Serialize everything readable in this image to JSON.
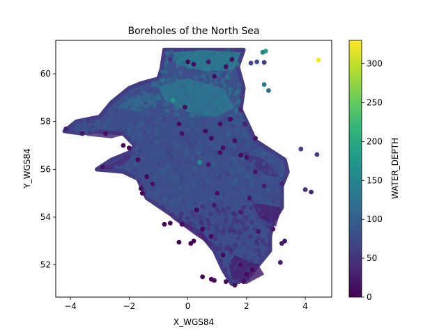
{
  "chart_data": {
    "type": "scatter",
    "title": "Boreholes of the North Sea",
    "xlabel": "X_WGS84",
    "ylabel": "Y_WGS84",
    "xlim": [
      -4.5,
      4.9
    ],
    "ylim": [
      50.65,
      61.4
    ],
    "xticks": [
      -4,
      -2,
      0,
      2,
      4
    ],
    "xtick_labels": [
      "−4",
      "−2",
      "0",
      "2",
      "4"
    ],
    "yticks": [
      52,
      54,
      56,
      58,
      60
    ],
    "ytick_labels": [
      "52",
      "54",
      "56",
      "58",
      "60"
    ],
    "color_variable": "WATER_DEPTH",
    "colorbar": {
      "label": "WATER_DEPTH",
      "range": [
        0,
        330
      ],
      "ticks": [
        0,
        50,
        100,
        150,
        200,
        250,
        300
      ],
      "tick_labels": [
        "0",
        "50",
        "100",
        "150",
        "200",
        "250",
        "300"
      ],
      "colormap": "viridis",
      "stops": [
        "#440154",
        "#482878",
        "#3e4989",
        "#31688e",
        "#26828e",
        "#1f9e89",
        "#35b779",
        "#6ece58",
        "#b5de2b",
        "#fde725"
      ]
    },
    "grid": false,
    "region_polygon": [
      [
        -4.2,
        57.6
      ],
      [
        -3.8,
        58.0
      ],
      [
        -3.0,
        58.2
      ],
      [
        -2.6,
        58.8
      ],
      [
        -2.0,
        59.4
      ],
      [
        -1.6,
        59.6
      ],
      [
        -1.0,
        59.8
      ],
      [
        -0.9,
        60.2
      ],
      [
        -0.8,
        61.0
      ],
      [
        1.0,
        61.0
      ],
      [
        1.9,
        61.0
      ],
      [
        1.7,
        60.3
      ],
      [
        1.9,
        59.4
      ],
      [
        1.8,
        58.5
      ],
      [
        2.0,
        58.0
      ],
      [
        2.3,
        57.2
      ],
      [
        2.8,
        56.8
      ],
      [
        3.3,
        56.4
      ],
      [
        3.4,
        55.9
      ],
      [
        3.2,
        55.3
      ],
      [
        3.2,
        54.4
      ],
      [
        2.9,
        53.8
      ],
      [
        2.8,
        53.2
      ],
      [
        2.8,
        52.6
      ],
      [
        2.4,
        52.0
      ],
      [
        2.0,
        51.4
      ],
      [
        1.5,
        51.2
      ],
      [
        1.2,
        51.8
      ],
      [
        0.9,
        52.6
      ],
      [
        0.5,
        53.2
      ],
      [
        -0.2,
        53.8
      ],
      [
        -0.8,
        54.3
      ],
      [
        -1.4,
        54.8
      ],
      [
        -1.7,
        55.6
      ],
      [
        -2.2,
        55.9
      ],
      [
        -3.1,
        56.0
      ],
      [
        -2.6,
        56.4
      ],
      [
        -2.0,
        56.7
      ],
      [
        -1.8,
        57.0
      ],
      [
        -2.2,
        57.5
      ],
      [
        -3.2,
        57.6
      ],
      [
        -3.6,
        57.5
      ]
    ],
    "shallow_patches": [
      {
        "polygon": [
          [
            -3.1,
            56.0
          ],
          [
            -2.5,
            56.3
          ],
          [
            -1.9,
            56.7
          ],
          [
            -1.6,
            56.9
          ],
          [
            -2.2,
            56.2
          ],
          [
            -2.6,
            56.0
          ]
        ],
        "water_depth": 40
      },
      {
        "polygon": [
          [
            -0.2,
            53.8
          ],
          [
            0.5,
            53.4
          ],
          [
            0.8,
            52.8
          ],
          [
            0.3,
            53.2
          ],
          [
            -0.6,
            54.0
          ]
        ],
        "water_depth": 35
      },
      {
        "polygon": [
          [
            1.6,
            52.4
          ],
          [
            2.4,
            52.0
          ],
          [
            2.6,
            51.6
          ],
          [
            2.0,
            51.2
          ],
          [
            1.5,
            51.4
          ],
          [
            1.4,
            52.0
          ]
        ],
        "water_depth": 30
      },
      {
        "polygon": [
          [
            -3.6,
            57.5
          ],
          [
            -2.6,
            57.6
          ],
          [
            -2.0,
            57.5
          ],
          [
            -2.6,
            57.3
          ],
          [
            -3.4,
            57.4
          ]
        ],
        "water_depth": 45
      },
      {
        "polygon": [
          [
            1.8,
            56.8
          ],
          [
            2.6,
            56.4
          ],
          [
            3.2,
            55.6
          ],
          [
            2.6,
            55.8
          ],
          [
            2.0,
            56.4
          ]
        ],
        "water_depth": 50
      },
      {
        "polygon": [
          [
            2.2,
            54.6
          ],
          [
            3.2,
            54.4
          ],
          [
            3.0,
            53.6
          ],
          [
            2.4,
            54.0
          ]
        ],
        "water_depth": 30
      }
    ],
    "deep_patches": [
      {
        "polygon": [
          [
            -1.0,
            59.5
          ],
          [
            0.0,
            59.8
          ],
          [
            1.2,
            59.4
          ],
          [
            1.6,
            58.6
          ],
          [
            1.0,
            58.2
          ],
          [
            0.0,
            58.4
          ],
          [
            -0.8,
            58.9
          ]
        ],
        "water_depth": 125
      },
      {
        "polygon": [
          [
            -0.5,
            60.9
          ],
          [
            0.5,
            61.0
          ],
          [
            1.8,
            60.9
          ],
          [
            1.6,
            60.2
          ],
          [
            0.6,
            60.1
          ],
          [
            -0.4,
            60.4
          ]
        ],
        "water_depth": 135
      },
      {
        "polygon": [
          [
            -2.4,
            58.6
          ],
          [
            -1.6,
            59.3
          ],
          [
            -0.9,
            59.0
          ],
          [
            -1.6,
            58.4
          ]
        ],
        "water_depth": 110
      }
    ],
    "points": [
      {
        "x": 4.45,
        "y": 60.58,
        "depth": 330
      },
      {
        "x": 2.65,
        "y": 60.95,
        "depth": 185
      },
      {
        "x": 2.55,
        "y": 60.9,
        "depth": 150
      },
      {
        "x": 2.35,
        "y": 60.5,
        "depth": 80
      },
      {
        "x": 2.15,
        "y": 60.45,
        "depth": 70
      },
      {
        "x": 2.6,
        "y": 60.48,
        "depth": 60
      },
      {
        "x": 2.6,
        "y": 59.55,
        "depth": 130
      },
      {
        "x": 2.75,
        "y": 59.3,
        "depth": 120
      },
      {
        "x": -0.5,
        "y": 58.9,
        "depth": 175
      },
      {
        "x": 0.4,
        "y": 56.3,
        "depth": 160
      },
      {
        "x": 3.85,
        "y": 56.85,
        "depth": 65
      },
      {
        "x": 4.4,
        "y": 56.62,
        "depth": 60
      },
      {
        "x": 4.0,
        "y": 55.15,
        "depth": 40
      },
      {
        "x": 4.2,
        "y": 55.05,
        "depth": 35
      },
      {
        "x": 3.2,
        "y": 55.4,
        "depth": 30
      },
      {
        "x": 2.3,
        "y": 55.9,
        "depth": 20
      },
      {
        "x": 1.1,
        "y": 56.7,
        "depth": 10
      },
      {
        "x": 2.0,
        "y": 56.5,
        "depth": 15
      },
      {
        "x": 0.7,
        "y": 56.2,
        "depth": 20
      },
      {
        "x": -0.3,
        "y": 57.9,
        "depth": 10
      },
      {
        "x": 1.1,
        "y": 57.9,
        "depth": 10
      },
      {
        "x": 1.6,
        "y": 57.2,
        "depth": 15
      },
      {
        "x": 0.8,
        "y": 57.3,
        "depth": 10
      },
      {
        "x": -0.1,
        "y": 58.6,
        "depth": 10
      },
      {
        "x": 0.2,
        "y": 60.4,
        "depth": 10
      },
      {
        "x": 0.7,
        "y": 60.5,
        "depth": 20
      },
      {
        "x": 1.3,
        "y": 60.3,
        "depth": 15
      },
      {
        "x": -0.6,
        "y": 60.6,
        "depth": 40
      },
      {
        "x": 0.3,
        "y": 54.3,
        "depth": 5
      },
      {
        "x": 0.5,
        "y": 53.5,
        "depth": 5
      },
      {
        "x": 0.8,
        "y": 53.2,
        "depth": 10
      },
      {
        "x": -0.3,
        "y": 52.95,
        "depth": 2
      },
      {
        "x": 0.1,
        "y": 52.9,
        "depth": 2
      },
      {
        "x": 0.2,
        "y": 53.0,
        "depth": 2
      },
      {
        "x": -0.6,
        "y": 53.75,
        "depth": 8
      },
      {
        "x": -0.8,
        "y": 53.7,
        "depth": 5
      },
      {
        "x": -0.2,
        "y": 53.7,
        "depth": 8
      },
      {
        "x": 0.5,
        "y": 51.5,
        "depth": 2
      },
      {
        "x": 0.8,
        "y": 51.4,
        "depth": 3
      },
      {
        "x": 0.9,
        "y": 51.35,
        "depth": 2
      },
      {
        "x": 1.3,
        "y": 51.3,
        "depth": 5
      },
      {
        "x": 1.6,
        "y": 51.15,
        "depth": 10
      },
      {
        "x": 1.9,
        "y": 51.3,
        "depth": 10
      },
      {
        "x": -1.7,
        "y": 56.4,
        "depth": 5
      },
      {
        "x": -1.4,
        "y": 55.7,
        "depth": 10
      },
      {
        "x": -1.6,
        "y": 55.2,
        "depth": 12
      },
      {
        "x": -1.55,
        "y": 55.0,
        "depth": 6
      },
      {
        "x": -2.8,
        "y": 57.5,
        "depth": 10
      },
      {
        "x": -3.6,
        "y": 57.5,
        "depth": 20
      },
      {
        "x": -4.15,
        "y": 57.7,
        "depth": 30
      },
      {
        "x": -2.2,
        "y": 57.0,
        "depth": 5
      },
      {
        "x": -2.0,
        "y": 56.9,
        "depth": 10
      },
      {
        "x": -2.9,
        "y": 56.1,
        "depth": 15
      },
      {
        "x": 2.6,
        "y": 55.3,
        "depth": 25
      },
      {
        "x": 3.3,
        "y": 53.0,
        "depth": 20
      },
      {
        "x": 3.2,
        "y": 52.9,
        "depth": 20
      },
      {
        "x": 3.15,
        "y": 52.1,
        "depth": 25
      },
      {
        "x": 1.8,
        "y": 52.0,
        "depth": 15
      },
      {
        "x": 1.2,
        "y": 52.4,
        "depth": 10
      },
      {
        "x": 2.4,
        "y": 53.4,
        "depth": 15
      },
      {
        "x": 1.0,
        "y": 55.0,
        "depth": 15
      },
      {
        "x": 0.9,
        "y": 54.5,
        "depth": 20
      },
      {
        "x": 2.1,
        "y": 54.8,
        "depth": 20
      },
      {
        "x": 1.8,
        "y": 54.2,
        "depth": 25
      },
      {
        "x": 2.6,
        "y": 54.0,
        "depth": 30
      },
      {
        "x": 1.8,
        "y": 56.6,
        "depth": 10
      },
      {
        "x": 1.45,
        "y": 58.1,
        "depth": 10
      },
      {
        "x": 0.9,
        "y": 59.9,
        "depth": 12
      },
      {
        "x": 0.0,
        "y": 60.5,
        "depth": 8
      },
      {
        "x": 1.5,
        "y": 60.6,
        "depth": 10
      },
      {
        "x": 1.8,
        "y": 58.5,
        "depth": 30
      },
      {
        "x": 1.95,
        "y": 57.9,
        "depth": 30
      },
      {
        "x": 2.3,
        "y": 57.3,
        "depth": 20
      },
      {
        "x": -0.2,
        "y": 57.5,
        "depth": 15
      },
      {
        "x": 0.6,
        "y": 57.6,
        "depth": 10
      },
      {
        "x": 1.2,
        "y": 56.9,
        "depth": 12
      },
      {
        "x": -1.2,
        "y": 55.4,
        "depth": 15
      },
      {
        "x": 2.9,
        "y": 53.5,
        "depth": 20
      },
      {
        "x": 2.0,
        "y": 51.6,
        "depth": 8
      },
      {
        "x": 2.2,
        "y": 51.8,
        "depth": 10
      }
    ]
  }
}
